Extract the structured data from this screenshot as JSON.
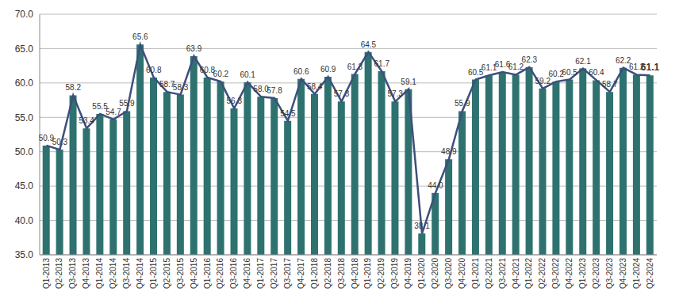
{
  "chart_data": {
    "type": "bar",
    "categories": [
      "Q1-2013",
      "Q2-2013",
      "Q3-2013",
      "Q4-2013",
      "Q1-2014",
      "Q2-2014",
      "Q3-2014",
      "Q4-2014",
      "Q1-2015",
      "Q2-2015",
      "Q3-2015",
      "Q4-2015",
      "Q1-2016",
      "Q2-2016",
      "Q3-2016",
      "Q4-2016",
      "Q1-2017",
      "Q2-2017",
      "Q3-2017",
      "Q4-2017",
      "Q1-2018",
      "Q2-2018",
      "Q3-2018",
      "Q4-2018",
      "Q1-2019",
      "Q2-2019",
      "Q3-2019",
      "Q4-2019",
      "Q1-2020",
      "Q2-2020",
      "Q3-2020",
      "Q4-2020",
      "Q1-2021",
      "Q2-2021",
      "Q3-2021",
      "Q4-2021",
      "Q1-2022",
      "Q2-2022",
      "Q3-2022",
      "Q4-2022",
      "Q1-2023",
      "Q2-2023",
      "Q3-2023",
      "Q4-2023",
      "Q1-2024",
      "Q2-2024"
    ],
    "series": [
      {
        "type": "bar",
        "color": "#2e7270",
        "values": [
          50.9,
          50.3,
          58.2,
          53.4,
          55.5,
          54.7,
          55.9,
          65.6,
          60.8,
          58.7,
          58.3,
          63.9,
          60.8,
          60.2,
          56.3,
          60.1,
          58.0,
          57.8,
          54.5,
          60.6,
          58.4,
          60.9,
          57.3,
          61.3,
          64.5,
          61.7,
          57.3,
          59.1,
          38.1,
          44.0,
          48.9,
          55.9,
          60.5,
          61.1,
          61.6,
          61.2,
          62.3,
          59.2,
          60.2,
          60.5,
          62.1,
          60.4,
          58.7,
          62.2,
          61.2,
          61.1
        ]
      },
      {
        "type": "line",
        "color": "#3d4f7c",
        "values": [
          50.9,
          50.3,
          58.2,
          53.4,
          55.5,
          54.7,
          55.9,
          65.6,
          60.8,
          58.7,
          58.3,
          63.9,
          60.8,
          60.2,
          56.3,
          60.1,
          58.0,
          57.8,
          54.5,
          60.6,
          58.4,
          60.9,
          57.3,
          61.3,
          64.5,
          61.7,
          57.3,
          59.1,
          38.1,
          44.0,
          48.9,
          55.9,
          60.5,
          61.1,
          61.6,
          61.2,
          62.3,
          59.2,
          60.2,
          60.5,
          62.1,
          60.4,
          58.7,
          62.2,
          61.2,
          61.1
        ],
        "value_labels": [
          "50.9",
          "50.3",
          "58.2",
          "53.4",
          "55.5",
          "54.7",
          "55.9",
          "65.6",
          "60.8",
          "58.7",
          "58.3",
          "63.9",
          "60.8",
          "60.2",
          "56.3",
          "60.1",
          "58.0",
          "57.8",
          "54.5",
          "60.6",
          "58.4",
          "60.9",
          "57.3",
          "61.3",
          "64.5",
          "61.7",
          "57.3",
          "59.1",
          "38.1",
          "44.0",
          "48.9",
          "55.9",
          "60.5",
          "61.1",
          "61.6",
          "61.2",
          "62.3",
          "59.2",
          "60.2",
          "60.5",
          "62.1",
          "60.4",
          "58.7",
          "62.2",
          "61.2",
          "61.1"
        ]
      }
    ],
    "ylim": [
      35,
      70
    ],
    "yticks": [
      {
        "value": 35,
        "label": "35.0"
      },
      {
        "value": 40,
        "label": "40.0"
      },
      {
        "value": 45,
        "label": "45.0"
      },
      {
        "value": 50,
        "label": "50.0"
      },
      {
        "value": 55,
        "label": "55.0"
      },
      {
        "value": 60,
        "label": "60.0"
      },
      {
        "value": 65,
        "label": "65.0"
      },
      {
        "value": 70,
        "label": "70.0"
      }
    ],
    "grid": true,
    "data_labels": true
  }
}
